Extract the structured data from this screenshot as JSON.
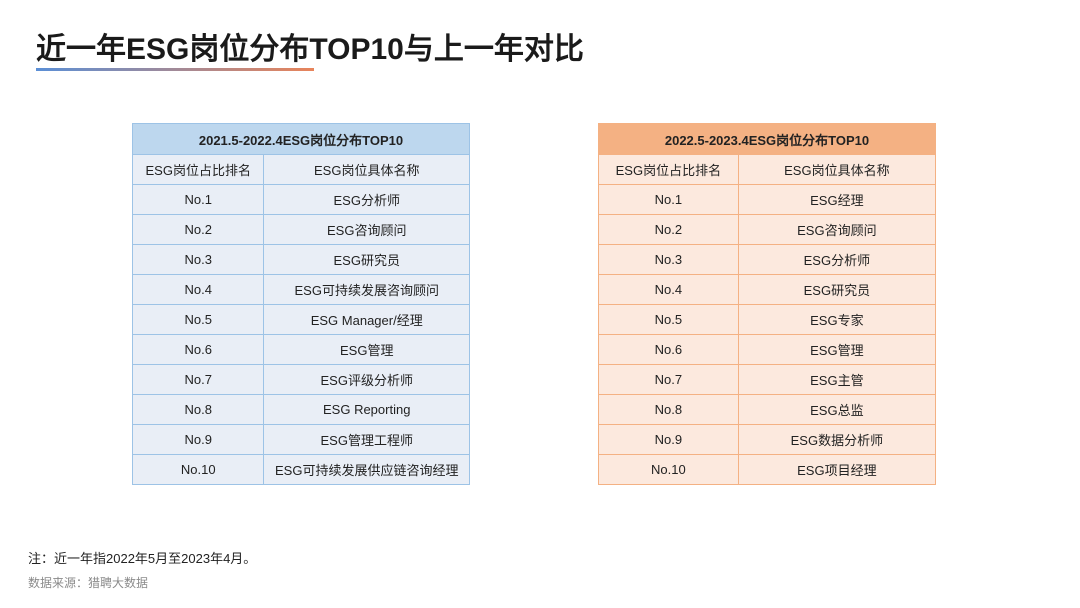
{
  "title": "近一年ESG岗位分布TOP10与上一年对比",
  "colors": {
    "left_header": "#bdd7ee",
    "left_cell": "#e9eef6",
    "left_border": "#9dc3e6",
    "right_header": "#f4b183",
    "right_cell": "#fce9de"
  },
  "left_table": {
    "title": "2021.5-2022.4ESG岗位分布TOP10",
    "columns": [
      "ESG岗位占比排名",
      "ESG岗位具体名称"
    ],
    "rows": [
      [
        "No.1",
        "ESG分析师"
      ],
      [
        "No.2",
        "ESG咨询顾问"
      ],
      [
        "No.3",
        "ESG研究员"
      ],
      [
        "No.4",
        "ESG可持续发展咨询顾问"
      ],
      [
        "No.5",
        "ESG Manager/经理"
      ],
      [
        "No.6",
        "ESG管理"
      ],
      [
        "No.7",
        "ESG评级分析师"
      ],
      [
        "No.8",
        "ESG Reporting"
      ],
      [
        "No.9",
        "ESG管理工程师"
      ],
      [
        "No.10",
        "ESG可持续发展供应链咨询经理"
      ]
    ]
  },
  "right_table": {
    "title": "2022.5-2023.4ESG岗位分布TOP10",
    "columns": [
      "ESG岗位占比排名",
      "ESG岗位具体名称"
    ],
    "rows": [
      [
        "No.1",
        "ESG经理"
      ],
      [
        "No.2",
        "ESG咨询顾问"
      ],
      [
        "No.3",
        "ESG分析师"
      ],
      [
        "No.4",
        "ESG研究员"
      ],
      [
        "No.5",
        "ESG专家"
      ],
      [
        "No.6",
        "ESG管理"
      ],
      [
        "No.7",
        "ESG主管"
      ],
      [
        "No.8",
        "ESG总监"
      ],
      [
        "No.9",
        "ESG数据分析师"
      ],
      [
        "No.10",
        "ESG项目经理"
      ]
    ]
  },
  "note": "注：近一年指2022年5月至2023年4月。",
  "source": "数据来源：猎聘大数据"
}
